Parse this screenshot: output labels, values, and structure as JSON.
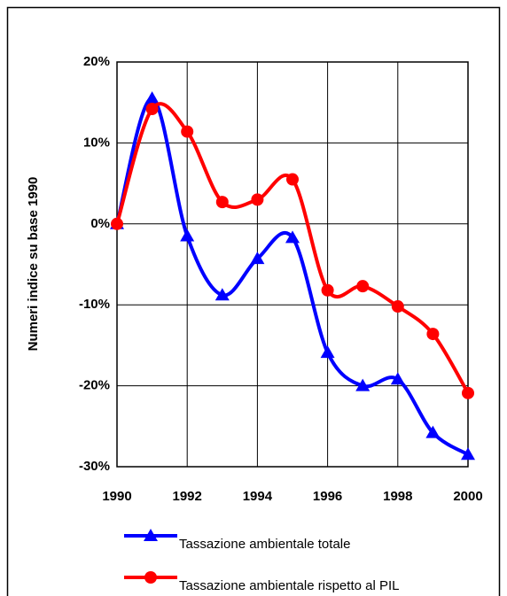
{
  "chart_data": {
    "type": "line",
    "y_label": "Numeri indice su base 1990",
    "x": [
      1990,
      1991,
      1992,
      1993,
      1994,
      1995,
      1996,
      1997,
      1998,
      1999,
      2000
    ],
    "series": [
      {
        "name": "Tassazione ambientale totale",
        "color": "#0000ff",
        "marker": "triangle",
        "values": [
          0,
          15.5,
          -1.5,
          -8.8,
          -4.3,
          -1.7,
          -15.9,
          -20,
          -19.2,
          -25.8,
          -28.5
        ]
      },
      {
        "name": "Tassazione ambientale rispetto al PIL",
        "color": "#ff0000",
        "marker": "circle",
        "values": [
          0,
          14.2,
          11.4,
          2.7,
          3.0,
          5.5,
          -8.2,
          -7.7,
          -10.2,
          -13.6,
          -20.9
        ]
      }
    ],
    "xlim": [
      1990,
      2000
    ],
    "xticks": [
      1990,
      1992,
      1994,
      1996,
      1998,
      2000
    ],
    "ylim": [
      -30,
      20
    ],
    "yticks": [
      {
        "value": -30,
        "label": "-30%"
      },
      {
        "value": -20,
        "label": "-20%"
      },
      {
        "value": -10,
        "label": "-10%"
      },
      {
        "value": 0,
        "label": "0%"
      },
      {
        "value": 10,
        "label": "10%"
      },
      {
        "value": 20,
        "label": "20%"
      }
    ],
    "grid": true,
    "legend": "bottom",
    "smooth": true
  }
}
